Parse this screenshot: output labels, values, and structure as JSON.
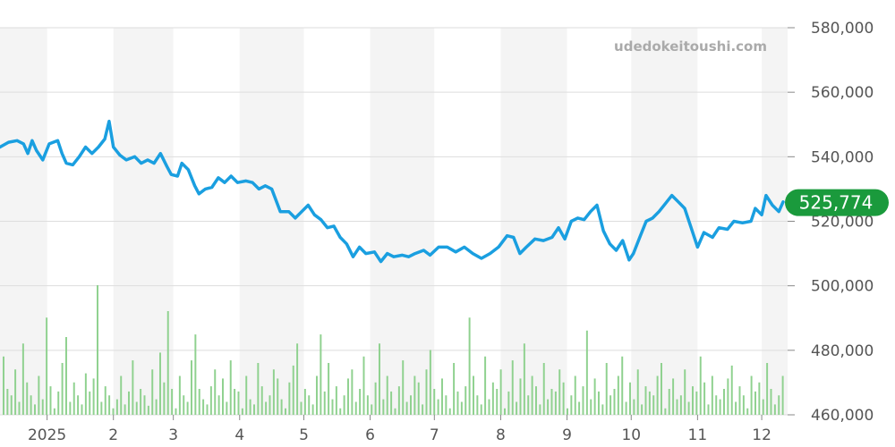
{
  "watermark": "udedokeitoushi.com",
  "last_price_label": "525,774",
  "colors": {
    "line": "#1a9fe0",
    "volume": "#8fd18f",
    "band": "#f4f4f4",
    "grid": "#dddddd",
    "last_badge": "#1a9a3c"
  },
  "chart_data": {
    "type": "line",
    "title": "",
    "xlabel": "",
    "ylabel": "",
    "ylim": [
      460000,
      580000
    ],
    "y_ticks": [
      460000,
      480000,
      500000,
      520000,
      540000,
      560000,
      580000
    ],
    "y_tick_labels": [
      "460,000",
      "480,000",
      "500,000",
      "520,000",
      "540,000",
      "560,000",
      "580,000"
    ],
    "x_ticks": [
      {
        "label": "2025",
        "x": "2025-01"
      },
      {
        "label": "2",
        "x": "2025-02"
      },
      {
        "label": "3",
        "x": "2025-03"
      },
      {
        "label": "4",
        "x": "2025-04"
      },
      {
        "label": "5",
        "x": "2025-05"
      },
      {
        "label": "6",
        "x": "2025-06"
      },
      {
        "label": "7",
        "x": "2025-07"
      },
      {
        "label": "8",
        "x": "2025-08"
      },
      {
        "label": "9",
        "x": "2025-09"
      },
      {
        "label": "10",
        "x": "2025-10"
      },
      {
        "label": "11",
        "x": "2025-11"
      },
      {
        "label": "12",
        "x": "2025-12"
      }
    ],
    "grid": true,
    "last_value": 525774,
    "series": [
      {
        "points": [
          [
            "2024-12-10",
            543000
          ],
          [
            "2024-12-14",
            544500
          ],
          [
            "2024-12-18",
            545000
          ],
          [
            "2024-12-21",
            544000
          ],
          [
            "2024-12-23",
            541000
          ],
          [
            "2024-12-25",
            545000
          ],
          [
            "2024-12-27",
            542000
          ],
          [
            "2024-12-30",
            539000
          ],
          [
            "2025-01-02",
            544000
          ],
          [
            "2025-01-06",
            545000
          ],
          [
            "2025-01-08",
            541000
          ],
          [
            "2025-01-10",
            538000
          ],
          [
            "2025-01-13",
            537500
          ],
          [
            "2025-01-16",
            540000
          ],
          [
            "2025-01-19",
            543000
          ],
          [
            "2025-01-22",
            541000
          ],
          [
            "2025-01-25",
            543000
          ],
          [
            "2025-01-28",
            545500
          ],
          [
            "2025-01-30",
            551000
          ],
          [
            "2025-02-01",
            543000
          ],
          [
            "2025-02-04",
            540500
          ],
          [
            "2025-02-07",
            539000
          ],
          [
            "2025-02-11",
            540000
          ],
          [
            "2025-02-14",
            538000
          ],
          [
            "2025-02-17",
            539000
          ],
          [
            "2025-02-20",
            538000
          ],
          [
            "2025-02-23",
            541000
          ],
          [
            "2025-02-26",
            537000
          ],
          [
            "2025-02-28",
            534500
          ],
          [
            "2025-03-03",
            534000
          ],
          [
            "2025-03-05",
            538000
          ],
          [
            "2025-03-08",
            536000
          ],
          [
            "2025-03-11",
            531000
          ],
          [
            "2025-03-13",
            528500
          ],
          [
            "2025-03-16",
            530000
          ],
          [
            "2025-03-19",
            530500
          ],
          [
            "2025-03-22",
            533500
          ],
          [
            "2025-03-25",
            532000
          ],
          [
            "2025-03-28",
            534000
          ],
          [
            "2025-03-31",
            532000
          ],
          [
            "2025-04-04",
            532500
          ],
          [
            "2025-04-07",
            532000
          ],
          [
            "2025-04-10",
            530000
          ],
          [
            "2025-04-13",
            531000
          ],
          [
            "2025-04-16",
            530000
          ],
          [
            "2025-04-20",
            523000
          ],
          [
            "2025-04-24",
            523000
          ],
          [
            "2025-04-27",
            521000
          ],
          [
            "2025-04-30",
            523000
          ],
          [
            "2025-05-03",
            525000
          ],
          [
            "2025-05-06",
            522000
          ],
          [
            "2025-05-09",
            520500
          ],
          [
            "2025-05-12",
            518000
          ],
          [
            "2025-05-15",
            518500
          ],
          [
            "2025-05-18",
            515000
          ],
          [
            "2025-05-21",
            513000
          ],
          [
            "2025-05-24",
            509000
          ],
          [
            "2025-05-27",
            512000
          ],
          [
            "2025-05-30",
            510000
          ],
          [
            "2025-06-03",
            510500
          ],
          [
            "2025-06-06",
            507500
          ],
          [
            "2025-06-09",
            510000
          ],
          [
            "2025-06-12",
            509000
          ],
          [
            "2025-06-16",
            509500
          ],
          [
            "2025-06-19",
            509000
          ],
          [
            "2025-06-22",
            510000
          ],
          [
            "2025-06-26",
            511000
          ],
          [
            "2025-06-29",
            509500
          ],
          [
            "2025-07-03",
            512000
          ],
          [
            "2025-07-07",
            512000
          ],
          [
            "2025-07-11",
            510500
          ],
          [
            "2025-07-15",
            512000
          ],
          [
            "2025-07-19",
            510000
          ],
          [
            "2025-07-23",
            508500
          ],
          [
            "2025-07-27",
            510000
          ],
          [
            "2025-07-31",
            512000
          ],
          [
            "2025-08-04",
            515500
          ],
          [
            "2025-08-07",
            515000
          ],
          [
            "2025-08-10",
            510000
          ],
          [
            "2025-08-13",
            512000
          ],
          [
            "2025-08-17",
            514500
          ],
          [
            "2025-08-21",
            514000
          ],
          [
            "2025-08-25",
            515000
          ],
          [
            "2025-08-28",
            518000
          ],
          [
            "2025-08-31",
            514500
          ],
          [
            "2025-09-03",
            520000
          ],
          [
            "2025-09-06",
            521000
          ],
          [
            "2025-09-09",
            520500
          ],
          [
            "2025-09-12",
            523000
          ],
          [
            "2025-09-15",
            525000
          ],
          [
            "2025-09-18",
            517000
          ],
          [
            "2025-09-21",
            513000
          ],
          [
            "2025-09-24",
            511000
          ],
          [
            "2025-09-27",
            514000
          ],
          [
            "2025-09-30",
            508000
          ],
          [
            "2025-10-02",
            510000
          ],
          [
            "2025-10-05",
            515000
          ],
          [
            "2025-10-08",
            520000
          ],
          [
            "2025-10-11",
            521000
          ],
          [
            "2025-10-14",
            523000
          ],
          [
            "2025-10-17",
            525500
          ],
          [
            "2025-10-20",
            528000
          ],
          [
            "2025-10-23",
            526000
          ],
          [
            "2025-10-26",
            524000
          ],
          [
            "2025-10-29",
            518000
          ],
          [
            "2025-11-01",
            512000
          ],
          [
            "2025-11-04",
            516500
          ],
          [
            "2025-11-08",
            515000
          ],
          [
            "2025-11-11",
            518000
          ],
          [
            "2025-11-15",
            517500
          ],
          [
            "2025-11-18",
            520000
          ],
          [
            "2025-11-22",
            519500
          ],
          [
            "2025-11-26",
            520000
          ],
          [
            "2025-11-28",
            524000
          ],
          [
            "2025-12-01",
            522000
          ],
          [
            "2025-12-03",
            528000
          ],
          [
            "2025-12-06",
            525000
          ],
          [
            "2025-12-09",
            523000
          ],
          [
            "2025-12-11",
            526000
          ]
        ]
      }
    ],
    "volume": {
      "note": "relative bar heights (0-1) of the unlabeled volume histogram",
      "values": [
        0.45,
        0.2,
        0.15,
        0.35,
        0.1,
        0.55,
        0.25,
        0.15,
        0.08,
        0.3,
        0.12,
        0.75,
        0.22,
        0.05,
        0.18,
        0.4,
        0.6,
        0.1,
        0.25,
        0.15,
        0.08,
        0.32,
        0.18,
        0.28,
        1.0,
        0.1,
        0.22,
        0.15,
        0.05,
        0.12,
        0.3,
        0.08,
        0.18,
        0.42,
        0.1,
        0.2,
        0.15,
        0.07,
        0.35,
        0.12,
        0.48,
        0.25,
        0.8,
        0.2,
        0.05,
        0.3,
        0.15,
        0.1,
        0.42,
        0.62,
        0.2,
        0.12,
        0.08,
        0.22,
        0.35,
        0.15,
        0.28,
        0.1,
        0.42,
        0.2,
        0.18,
        0.05,
        0.3,
        0.12,
        0.08,
        0.4,
        0.22,
        0.1,
        0.15,
        0.35,
        0.28,
        0.12,
        0.05,
        0.25,
        0.38,
        0.55,
        0.1,
        0.2,
        0.15,
        0.08,
        0.3,
        0.62,
        0.18,
        0.4,
        0.12,
        0.22,
        0.05,
        0.15,
        0.28,
        0.35,
        0.1,
        0.2,
        0.45,
        0.15,
        0.08,
        0.25,
        0.55,
        0.12,
        0.3,
        0.18,
        0.05,
        0.22,
        0.42,
        0.1,
        0.15,
        0.3,
        0.25,
        0.08,
        0.35,
        0.5,
        0.2,
        0.12,
        0.28,
        0.15,
        0.05,
        0.4,
        0.18,
        0.1,
        0.22,
        0.75,
        0.3,
        0.15,
        0.08,
        0.45,
        0.12,
        0.25,
        0.2,
        0.35,
        0.05,
        0.18,
        0.42,
        0.1,
        0.28,
        0.55,
        0.15,
        0.3,
        0.22,
        0.08,
        0.4,
        0.12,
        0.2,
        0.18,
        0.35,
        0.25,
        0.05,
        0.15,
        0.3,
        0.1,
        0.22,
        0.65,
        0.12,
        0.28,
        0.18,
        0.08,
        0.4,
        0.15,
        0.2,
        0.3,
        0.45,
        0.1,
        0.25,
        0.12,
        0.35,
        0.08,
        0.22,
        0.18,
        0.15,
        0.3,
        0.4,
        0.05,
        0.2,
        0.28,
        0.12,
        0.15,
        0.35,
        0.1,
        0.22,
        0.18,
        0.45,
        0.25,
        0.08,
        0.3,
        0.15,
        0.12,
        0.2,
        0.28,
        0.38,
        0.1,
        0.22,
        0.15,
        0.05,
        0.3,
        0.18,
        0.25,
        0.12,
        0.4,
        0.2,
        0.08,
        0.15,
        0.3
      ]
    }
  }
}
